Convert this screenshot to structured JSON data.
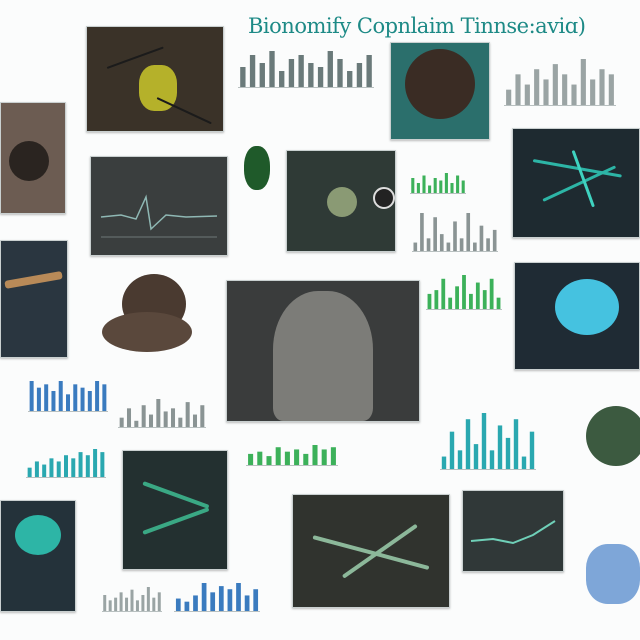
{
  "header": {
    "title": "Bionomify Copnlaim Tinnse:aviɑ)"
  },
  "theme": {
    "accent": "#1d8a86",
    "teal": "#2db5a6",
    "dark_panel": "#2c3434",
    "bar_blue": "#3a7bbf",
    "bar_green": "#3cb15a",
    "bar_teal": "#2aa8b0"
  },
  "tiles": [
    {
      "id": "insect-specimen",
      "subject": "insect with veins"
    },
    {
      "id": "sponge-tissue",
      "subject": "porous tissue"
    },
    {
      "id": "fungus-bloom",
      "subject": "mushroom-like organ"
    },
    {
      "id": "beetle",
      "subject": "green beetle"
    },
    {
      "id": "star-cell",
      "subject": "star shaped cell"
    },
    {
      "id": "teal-network",
      "subject": "branching teal network"
    },
    {
      "id": "wing-insect",
      "subject": "insect wing"
    },
    {
      "id": "fuzzy-blob",
      "subject": "brown fuzzy blob"
    },
    {
      "id": "large-organ",
      "subject": "grey organ structure"
    },
    {
      "id": "glowing-creature",
      "subject": "glowing blue creature"
    },
    {
      "id": "green-dendrite",
      "subject": "green dendrite"
    },
    {
      "id": "jellyfish",
      "subject": "jellyfish"
    },
    {
      "id": "branching-roots",
      "subject": "branching roots"
    },
    {
      "id": "sea-urchin",
      "subject": "spiny sphere"
    },
    {
      "id": "blue-pod",
      "subject": "blue textured pod"
    }
  ],
  "chart_data": [
    {
      "type": "bar",
      "series": [
        {
          "values": [
            5,
            8,
            6,
            9,
            4,
            7,
            8,
            6,
            5,
            9,
            7,
            4,
            6,
            8
          ]
        }
      ]
    },
    {
      "type": "bar",
      "series": [
        {
          "values": [
            3,
            6,
            4,
            7,
            5,
            8,
            6,
            4,
            9,
            5,
            7,
            6
          ]
        }
      ]
    },
    {
      "type": "bar",
      "series": [
        {
          "values": [
            6,
            4,
            7,
            3,
            6,
            5,
            8,
            4,
            7,
            5
          ]
        }
      ]
    },
    {
      "type": "bar",
      "series": [
        {
          "values": [
            2,
            9,
            3,
            8,
            4,
            2,
            7,
            3,
            9,
            2,
            6,
            3,
            5
          ]
        }
      ]
    },
    {
      "type": "bar",
      "series": [
        {
          "values": [
            4,
            5,
            8,
            3,
            6,
            9,
            4,
            7,
            5,
            8,
            3
          ]
        }
      ]
    },
    {
      "type": "bar",
      "series": [
        {
          "values": [
            9,
            7,
            8,
            6,
            9,
            5,
            8,
            7,
            6,
            9,
            8
          ]
        }
      ]
    },
    {
      "type": "bar",
      "series": [
        {
          "values": [
            3,
            6,
            2,
            7,
            4,
            9,
            5,
            6,
            3,
            8,
            4,
            7
          ]
        }
      ]
    },
    {
      "type": "bar",
      "series": [
        {
          "values": [
            2,
            6,
            3,
            8,
            4,
            9,
            3,
            7,
            5,
            8,
            2,
            6
          ]
        }
      ]
    },
    {
      "type": "bar",
      "series": [
        {
          "values": [
            5,
            6,
            4,
            8,
            6,
            7,
            5,
            9,
            7,
            8
          ]
        }
      ]
    },
    {
      "type": "bar",
      "series": [
        {
          "values": [
            3,
            5,
            4,
            6,
            5,
            7,
            6,
            8,
            7,
            9,
            8
          ]
        }
      ]
    },
    {
      "type": "bar",
      "series": [
        {
          "values": [
            4,
            3,
            5,
            9,
            6,
            8,
            7,
            9,
            5,
            7
          ]
        }
      ]
    },
    {
      "type": "bar",
      "series": [
        {
          "values": [
            6,
            4,
            5,
            7,
            5,
            8,
            4,
            6,
            9,
            5,
            7
          ]
        }
      ]
    }
  ]
}
